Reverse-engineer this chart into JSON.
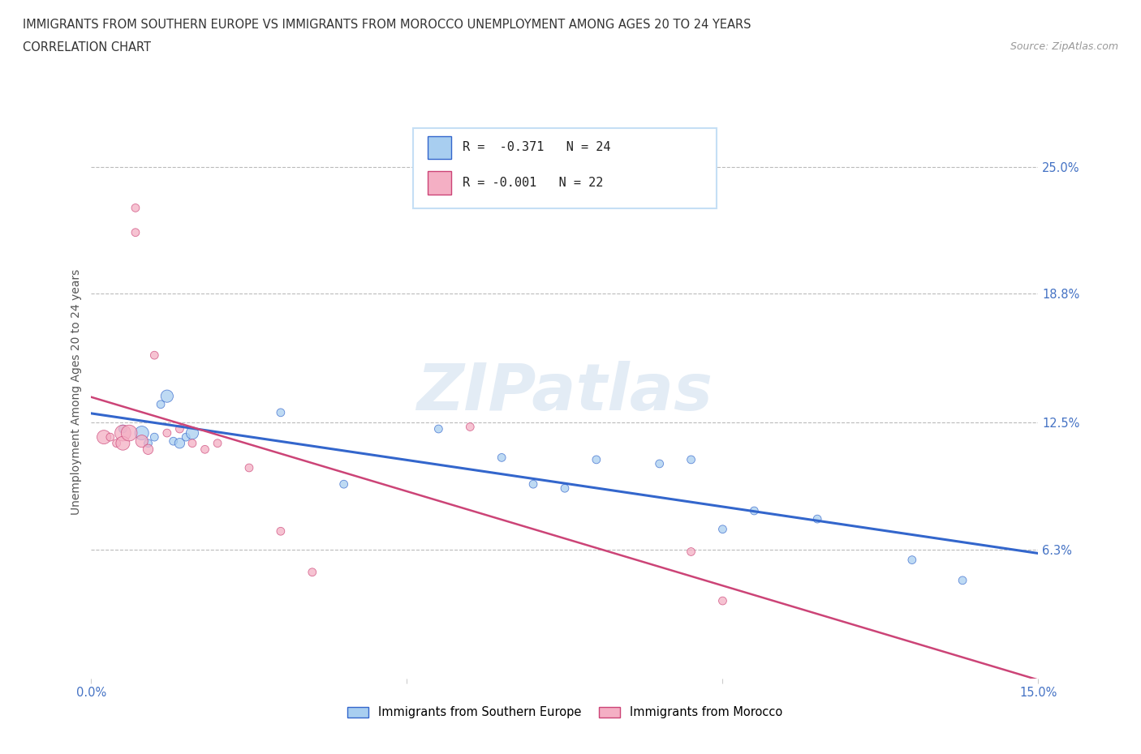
{
  "title_line1": "IMMIGRANTS FROM SOUTHERN EUROPE VS IMMIGRANTS FROM MOROCCO UNEMPLOYMENT AMONG AGES 20 TO 24 YEARS",
  "title_line2": "CORRELATION CHART",
  "source": "Source: ZipAtlas.com",
  "ylabel": "Unemployment Among Ages 20 to 24 years",
  "watermark": "ZIPatlas",
  "xlim": [
    0.0,
    0.15
  ],
  "ylim": [
    0.0,
    0.28
  ],
  "ytick_labels_right": [
    "25.0%",
    "18.8%",
    "12.5%",
    "6.3%"
  ],
  "ytick_vals_right": [
    0.25,
    0.188,
    0.125,
    0.063
  ],
  "blue_scatter_color": "#a8cef0",
  "pink_scatter_color": "#f4afc4",
  "trendline_blue": "#3366CC",
  "trendline_pink": "#CC4477",
  "blue_points_x": [
    0.005,
    0.008,
    0.009,
    0.01,
    0.011,
    0.012,
    0.013,
    0.014,
    0.015,
    0.016,
    0.03,
    0.04,
    0.055,
    0.065,
    0.07,
    0.075,
    0.08,
    0.09,
    0.095,
    0.1,
    0.105,
    0.115,
    0.13,
    0.138
  ],
  "blue_points_y": [
    0.122,
    0.12,
    0.115,
    0.118,
    0.134,
    0.138,
    0.116,
    0.115,
    0.118,
    0.12,
    0.13,
    0.095,
    0.122,
    0.108,
    0.095,
    0.093,
    0.107,
    0.105,
    0.107,
    0.073,
    0.082,
    0.078,
    0.058,
    0.048
  ],
  "blue_sizes": [
    50,
    150,
    50,
    50,
    50,
    120,
    50,
    80,
    50,
    120,
    50,
    50,
    50,
    50,
    50,
    50,
    50,
    50,
    50,
    50,
    50,
    50,
    50,
    50
  ],
  "pink_points_x": [
    0.002,
    0.003,
    0.004,
    0.005,
    0.005,
    0.006,
    0.007,
    0.007,
    0.008,
    0.009,
    0.01,
    0.012,
    0.014,
    0.016,
    0.018,
    0.02,
    0.025,
    0.03,
    0.035,
    0.06,
    0.095,
    0.1
  ],
  "pink_points_y": [
    0.118,
    0.118,
    0.115,
    0.12,
    0.115,
    0.12,
    0.23,
    0.218,
    0.116,
    0.112,
    0.158,
    0.12,
    0.122,
    0.115,
    0.112,
    0.115,
    0.103,
    0.072,
    0.052,
    0.123,
    0.062,
    0.038
  ],
  "pink_sizes": [
    150,
    50,
    50,
    200,
    150,
    200,
    50,
    50,
    120,
    80,
    50,
    50,
    50,
    50,
    50,
    50,
    50,
    50,
    50,
    50,
    50,
    50
  ],
  "legend_label_blue": "Immigrants from Southern Europe",
  "legend_label_pink": "Immigrants from Morocco",
  "legend_box_color": "#c5dff5"
}
